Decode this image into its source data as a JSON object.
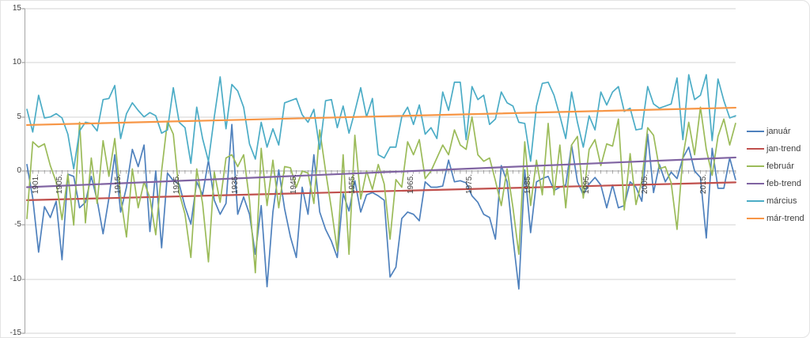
{
  "chart_data": {
    "type": "line",
    "title": "",
    "xlabel": "",
    "ylabel": "",
    "ylim": [
      -15,
      15
    ],
    "grid": true,
    "legend_position": "right",
    "y_tick_labels": [
      "15",
      "10",
      "5",
      "0",
      "-5",
      "-10",
      "-15"
    ],
    "y_tick_values": [
      15,
      10,
      5,
      0,
      -5,
      -10,
      -15
    ],
    "x_tick_labels": [
      "1901.",
      "1905.",
      "1915.",
      "1925.",
      "1935.",
      "1945.",
      "1955.",
      "1965.",
      "1975.",
      "1985.",
      "1995.",
      "2005.",
      "2015."
    ],
    "x_tick_years": [
      1901,
      1905,
      1915,
      1925,
      1935,
      1945,
      1955,
      1965,
      1975,
      1985,
      1995,
      2005,
      2015
    ],
    "x_start_year": 1901,
    "x_end_year": 2022,
    "series": [
      {
        "name": "január",
        "color": "#4F81BD",
        "values": [
          0.6,
          -2.5,
          -7.5,
          -3.3,
          -4.3,
          -2.8,
          -8.2,
          -0.3,
          -0.5,
          -3.4,
          -2.9,
          -0.5,
          -2.7,
          -5.8,
          -2.5,
          1.5,
          -3.8,
          -1.5,
          2.0,
          0.4,
          2.4,
          -5.6,
          0.0,
          -7.1,
          -0.2,
          -0.9,
          -1.2,
          -3.3,
          -4.9,
          -1.0,
          -2.2,
          1.0,
          -2.7,
          -4.0,
          -3.0,
          4.3,
          -4.0,
          -2.4,
          -4.0,
          -7.7,
          -3.2,
          -10.7,
          -3.8,
          0.1,
          -3.5,
          -6.1,
          -8.0,
          -1.5,
          -4.0,
          1.5,
          -3.8,
          -5.4,
          -6.5,
          -8.0,
          -2.1,
          -3.7,
          -0.9,
          -3.8,
          -2.2,
          -2.0,
          -2.3,
          -2.7,
          -9.8,
          -8.9,
          -4.4,
          -3.8,
          -4.0,
          -4.6,
          -1.0,
          -1.5,
          -1.5,
          -1.4,
          1.0,
          -1.0,
          -0.9,
          -1.1,
          -2.3,
          -2.9,
          -4.0,
          -4.3,
          -6.3,
          0.5,
          -1.0,
          -6.2,
          -10.9,
          0.1,
          -5.7,
          -1.0,
          -0.7,
          -0.5,
          -1.8,
          -1.5,
          -1.3,
          2.4,
          -1.0,
          -2.2,
          -1.2,
          -0.6,
          -1.3,
          -3.4,
          -1.3,
          -3.4,
          -3.2,
          -1.0,
          -1.5,
          -2.8,
          3.4,
          -2.0,
          0.6,
          -1.0,
          -0.1,
          -0.7,
          1.2,
          2.2,
          0.0,
          -0.6,
          -6.2,
          2.1,
          -1.6,
          -1.6,
          1.2,
          -0.8
        ]
      },
      {
        "name": "jan-trend",
        "color": "#C0504D",
        "trend": true,
        "trend_start": -2.7,
        "trend_end": -1.05
      },
      {
        "name": "február",
        "color": "#9BBB59",
        "values": [
          -4.4,
          2.7,
          2.2,
          2.5,
          0.5,
          -1.0,
          -4.5,
          -0.3,
          -5.0,
          4.5,
          -4.8,
          1.2,
          -3.0,
          2.8,
          -0.5,
          3.0,
          -2.4,
          -6.1,
          0.2,
          -3.4,
          -1.0,
          -2.5,
          -5.9,
          0.0,
          4.6,
          3.4,
          -2.0,
          -4.0,
          -8.0,
          0.2,
          -3.0,
          -8.4,
          -0.1,
          -2.9,
          1.2,
          1.5,
          0.4,
          1.5,
          -2.7,
          -9.4,
          2.1,
          -3.2,
          1.0,
          -3.4,
          0.4,
          0.3,
          -1.5,
          0.0,
          -0.2,
          -3.0,
          3.8,
          0.0,
          -3.5,
          -7.4,
          1.5,
          -7.7,
          3.3,
          -2.6,
          0.0,
          -1.7,
          0.6,
          -1.2,
          -6.3,
          -0.8,
          -1.5,
          2.7,
          1.5,
          2.9,
          -0.7,
          0.0,
          1.2,
          2.4,
          1.5,
          3.8,
          2.4,
          2.0,
          5.0,
          1.5,
          0.9,
          1.2,
          -0.9,
          -3.2,
          0.2,
          -3.4,
          -7.7,
          2.7,
          -3.2,
          1.0,
          -2.2,
          4.4,
          -2.2,
          2.4,
          -3.4,
          2.4,
          3.2,
          -2.5,
          2.0,
          2.9,
          0.5,
          2.5,
          2.3,
          4.8,
          -3.6,
          1.6,
          -3.1,
          -0.9,
          4.0,
          3.3,
          0.2,
          0.4,
          -1.1,
          -5.4,
          1.3,
          4.5,
          1.5,
          5.9,
          2.0,
          -0.4,
          3.2,
          4.8,
          2.4,
          4.4
        ]
      },
      {
        "name": "feb-trend",
        "color": "#8064A2",
        "trend": true,
        "trend_start": -1.5,
        "trend_end": 1.25
      },
      {
        "name": "március",
        "color": "#4BACC6",
        "values": [
          5.7,
          3.6,
          7.0,
          4.9,
          5.0,
          5.3,
          4.9,
          3.4,
          0.2,
          3.7,
          4.5,
          4.4,
          3.7,
          6.6,
          6.7,
          7.9,
          3.0,
          5.3,
          6.3,
          5.6,
          5.0,
          5.4,
          5.1,
          3.5,
          3.8,
          7.7,
          4.5,
          4.0,
          0.7,
          5.9,
          3.0,
          0.9,
          5.0,
          8.7,
          3.9,
          8.0,
          7.4,
          5.9,
          2.5,
          1.1,
          4.5,
          2.2,
          3.9,
          2.4,
          6.3,
          6.5,
          6.7,
          5.2,
          4.5,
          5.7,
          2.0,
          6.5,
          6.6,
          4.0,
          6.0,
          3.5,
          5.5,
          7.7,
          5.0,
          6.7,
          1.5,
          1.2,
          2.2,
          2.2,
          5.0,
          5.9,
          4.3,
          6.1,
          3.4,
          4.0,
          3.0,
          7.3,
          5.6,
          8.2,
          8.2,
          2.9,
          7.8,
          6.6,
          7.0,
          4.3,
          4.8,
          7.3,
          6.3,
          6.0,
          4.5,
          4.4,
          0.9,
          6.0,
          8.1,
          8.2,
          7.0,
          5.1,
          3.0,
          7.3,
          4.5,
          2.2,
          5.1,
          3.8,
          7.3,
          6.1,
          7.3,
          7.8,
          5.5,
          5.8,
          3.8,
          3.9,
          7.8,
          6.2,
          5.8,
          6.0,
          6.2,
          8.6,
          2.9,
          8.9,
          6.6,
          7.0,
          8.9,
          2.8,
          8.5,
          6.5,
          4.9,
          5.1
        ]
      },
      {
        "name": "már-trend",
        "color": "#F79646",
        "trend": true,
        "trend_start": 4.25,
        "trend_end": 5.85
      }
    ]
  },
  "legend": {
    "items": [
      {
        "label": "január"
      },
      {
        "label": "jan-trend"
      },
      {
        "label": "február"
      },
      {
        "label": "feb-trend"
      },
      {
        "label": "március"
      },
      {
        "label": "már-trend"
      }
    ]
  },
  "colors": {
    "gridline": "#D3D3D3",
    "axis_line": "#A6A6A6",
    "tick": "#898989",
    "text": "#3F3F3F",
    "background": "#FFFFFF"
  }
}
